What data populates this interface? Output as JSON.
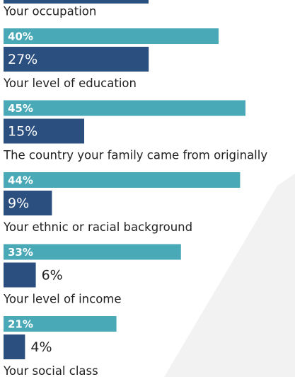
{
  "chart_data": {
    "type": "bar",
    "orientation": "horizontal",
    "categories": [
      "Your occupation",
      "Your level of education",
      "The country your family came from originally",
      "Your ethnic or racial background",
      "Your level of income",
      "Your social class"
    ],
    "series": [
      {
        "color": "#4aa9b7",
        "values": [
          40,
          45,
          44,
          33,
          21,
          null
        ],
        "value_labels": [
          "40%",
          "45%",
          "44%",
          "33%",
          "21%",
          null
        ]
      },
      {
        "color": "#2b4f7f",
        "values": [
          27,
          15,
          9,
          6,
          4,
          null
        ],
        "value_labels": [
          "27%",
          "15%",
          "9%",
          "6%",
          "4%",
          null
        ]
      }
    ],
    "xlim": [
      0,
      50
    ]
  }
}
